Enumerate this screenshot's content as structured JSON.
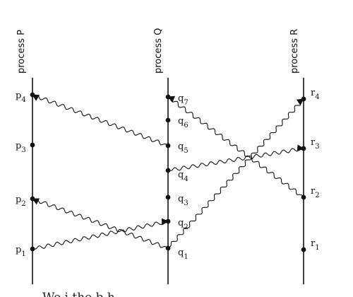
{
  "processes": [
    {
      "id": "P",
      "label": "process P"
    },
    {
      "id": "Q",
      "label": "process Q"
    },
    {
      "id": "R",
      "label": "process R"
    }
  ],
  "events": {
    "P": [
      {
        "letter": "p",
        "index": "1"
      },
      {
        "letter": "p",
        "index": "2"
      },
      {
        "letter": "p",
        "index": "3"
      },
      {
        "letter": "p",
        "index": "4"
      }
    ],
    "Q": [
      {
        "letter": "q",
        "index": "1"
      },
      {
        "letter": "q",
        "index": "2"
      },
      {
        "letter": "q",
        "index": "3"
      },
      {
        "letter": "q",
        "index": "4"
      },
      {
        "letter": "q",
        "index": "5"
      },
      {
        "letter": "q",
        "index": "6"
      },
      {
        "letter": "q",
        "index": "7"
      }
    ],
    "R": [
      {
        "letter": "r",
        "index": "1"
      },
      {
        "letter": "r",
        "index": "2"
      },
      {
        "letter": "r",
        "index": "3"
      },
      {
        "letter": "r",
        "index": "4"
      }
    ]
  },
  "messages": [
    {
      "from": "p1",
      "to": "q2"
    },
    {
      "from": "q1",
      "to": "p2"
    },
    {
      "from": "q1",
      "to": "r4"
    },
    {
      "from": "q4",
      "to": "r3"
    },
    {
      "from": "q5",
      "to": "p4"
    },
    {
      "from": "r2",
      "to": "q7"
    }
  ],
  "footer_text": "We         i   the   b          h"
}
